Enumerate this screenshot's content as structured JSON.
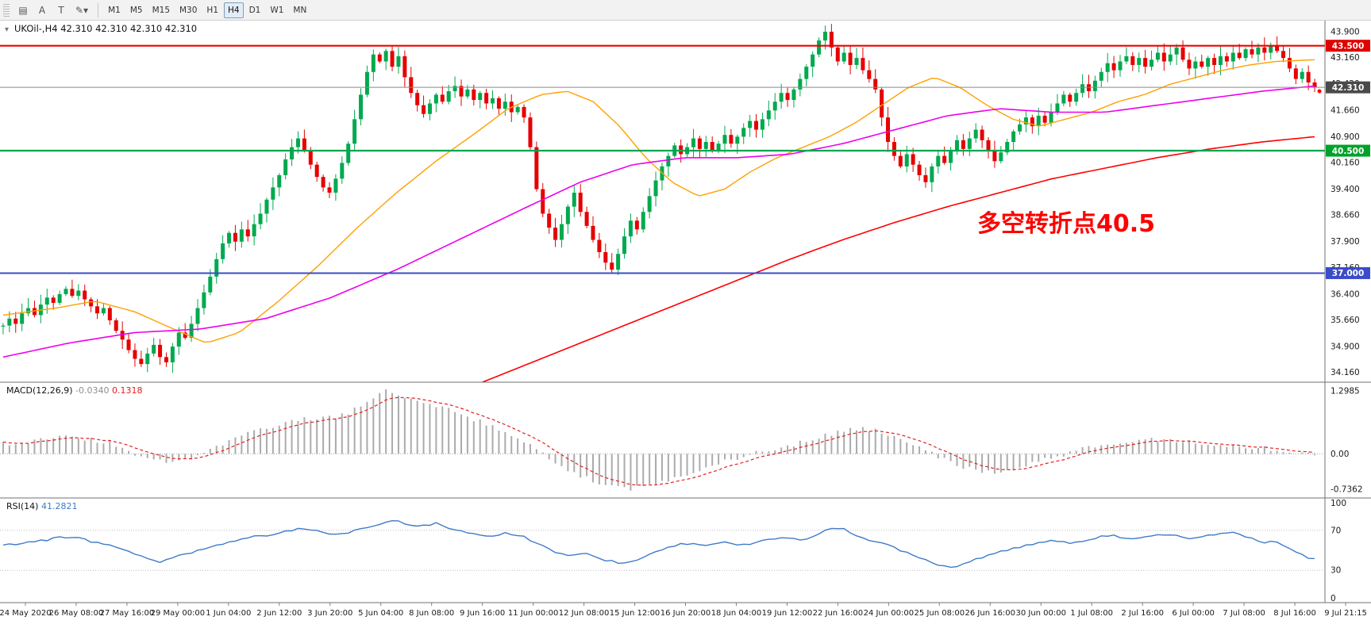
{
  "toolbar": {
    "icons": [
      {
        "name": "chart-list-icon",
        "glyph": "▤"
      },
      {
        "name": "label-a-button",
        "glyph": "A"
      },
      {
        "name": "text-tool-button",
        "glyph": "T"
      },
      {
        "name": "drawing-tools-dropdown",
        "glyph": "✎▾"
      }
    ],
    "timeframes": [
      "M1",
      "M5",
      "M15",
      "M30",
      "H1",
      "H4",
      "D1",
      "W1",
      "MN"
    ],
    "active_timeframe": "H4"
  },
  "header": {
    "symbol_title": "UKOil-,H4",
    "ohlc_text": "42.310 42.310 42.310 42.310"
  },
  "chart_data": {
    "type": "candlestick",
    "symbol": "UKOil-",
    "timeframe": "H4",
    "current_price": 42.31,
    "y_range": [
      33.95,
      44.15
    ],
    "price_axis_labels": [
      "43.900",
      "43.160",
      "42.420",
      "41.660",
      "40.900",
      "40.160",
      "39.400",
      "38.660",
      "37.900",
      "37.160",
      "36.400",
      "35.660",
      "34.900",
      "34.160"
    ],
    "horizontal_lines": [
      {
        "price": 43.5,
        "color": "#f00000",
        "width": 2.2,
        "label": "43.500",
        "badge_color": "#e00000"
      },
      {
        "price": 42.31,
        "color": "#8a8a8a",
        "width": 1,
        "label": "42.310",
        "badge_color": "#4a4a4a"
      },
      {
        "price": 40.5,
        "color": "#00a651",
        "width": 2.2,
        "label": "40.500",
        "badge_color": "#00a22a"
      },
      {
        "price": 37.0,
        "color": "#3b4cca",
        "width": 2,
        "label": "37.000",
        "badge_color": "#3b4cca"
      }
    ],
    "annotation": {
      "text": "多空转折点40.5",
      "color": "#ff0000"
    },
    "closes": [
      35.5,
      35.7,
      35.55,
      35.85,
      36.0,
      35.8,
      36.1,
      36.3,
      36.15,
      36.4,
      36.55,
      36.35,
      36.5,
      36.25,
      36.05,
      35.85,
      36.0,
      35.65,
      35.35,
      35.1,
      34.8,
      34.55,
      34.4,
      34.7,
      34.95,
      34.6,
      34.45,
      34.9,
      35.3,
      35.15,
      35.55,
      36.0,
      36.45,
      36.9,
      37.4,
      37.85,
      38.15,
      37.9,
      38.25,
      38.05,
      38.4,
      38.7,
      39.1,
      39.45,
      39.8,
      40.25,
      40.6,
      40.85,
      40.5,
      40.1,
      39.75,
      39.45,
      39.3,
      39.7,
      40.15,
      40.7,
      41.4,
      42.1,
      42.75,
      43.25,
      43.05,
      43.35,
      42.9,
      43.2,
      42.6,
      42.15,
      41.8,
      41.55,
      41.85,
      42.1,
      41.9,
      42.2,
      42.35,
      42.05,
      42.25,
      41.95,
      42.15,
      41.85,
      42.0,
      41.7,
      41.9,
      41.6,
      41.75,
      41.45,
      40.6,
      39.4,
      38.7,
      38.3,
      37.95,
      38.4,
      38.9,
      39.3,
      38.75,
      38.35,
      37.95,
      37.6,
      37.3,
      37.1,
      37.55,
      38.05,
      38.5,
      38.25,
      38.75,
      39.2,
      39.65,
      40.05,
      40.35,
      40.65,
      40.4,
      40.6,
      40.85,
      40.55,
      40.75,
      40.5,
      40.7,
      40.95,
      40.7,
      40.9,
      41.15,
      41.35,
      41.1,
      41.4,
      41.65,
      41.9,
      42.15,
      41.95,
      42.25,
      42.55,
      42.9,
      43.25,
      43.65,
      43.9,
      43.45,
      43.05,
      43.3,
      42.95,
      43.15,
      42.8,
      42.55,
      42.25,
      41.45,
      40.75,
      40.35,
      40.05,
      40.4,
      40.1,
      39.8,
      39.6,
      40.05,
      40.35,
      40.15,
      40.5,
      40.8,
      40.55,
      40.85,
      41.1,
      40.8,
      40.5,
      40.2,
      40.45,
      40.75,
      41.05,
      41.25,
      41.45,
      41.2,
      41.5,
      41.3,
      41.6,
      41.85,
      42.1,
      41.9,
      42.15,
      42.4,
      42.2,
      42.5,
      42.75,
      43.0,
      42.8,
      43.05,
      43.2,
      42.95,
      43.15,
      42.9,
      43.1,
      43.3,
      43.05,
      43.25,
      43.45,
      43.1,
      42.85,
      43.05,
      42.9,
      43.15,
      42.95,
      43.2,
      43.05,
      43.3,
      43.15,
      43.4,
      43.25,
      43.45,
      43.3,
      43.5,
      43.35,
      43.15,
      42.85,
      42.55,
      42.75,
      42.45,
      42.31
    ],
    "candle_up_color": "#00a94f",
    "candle_down_color": "#e60000",
    "moving_averages": [
      {
        "name": "ma-fast-orange",
        "color": "#ffa000",
        "width": 1.4,
        "points": [
          [
            0,
            35.8
          ],
          [
            0.04,
            36.0
          ],
          [
            0.07,
            36.2
          ],
          [
            0.1,
            35.9
          ],
          [
            0.13,
            35.4
          ],
          [
            0.155,
            35.0
          ],
          [
            0.18,
            35.3
          ],
          [
            0.21,
            36.2
          ],
          [
            0.24,
            37.2
          ],
          [
            0.27,
            38.3
          ],
          [
            0.3,
            39.3
          ],
          [
            0.33,
            40.2
          ],
          [
            0.36,
            41.0
          ],
          [
            0.385,
            41.7
          ],
          [
            0.41,
            42.1
          ],
          [
            0.43,
            42.2
          ],
          [
            0.45,
            41.9
          ],
          [
            0.47,
            41.2
          ],
          [
            0.49,
            40.3
          ],
          [
            0.51,
            39.6
          ],
          [
            0.53,
            39.2
          ],
          [
            0.55,
            39.4
          ],
          [
            0.57,
            39.9
          ],
          [
            0.59,
            40.3
          ],
          [
            0.61,
            40.6
          ],
          [
            0.63,
            40.9
          ],
          [
            0.65,
            41.3
          ],
          [
            0.67,
            41.8
          ],
          [
            0.69,
            42.3
          ],
          [
            0.71,
            42.6
          ],
          [
            0.73,
            42.3
          ],
          [
            0.75,
            41.8
          ],
          [
            0.77,
            41.4
          ],
          [
            0.79,
            41.2
          ],
          [
            0.81,
            41.4
          ],
          [
            0.83,
            41.6
          ],
          [
            0.85,
            41.9
          ],
          [
            0.87,
            42.1
          ],
          [
            0.89,
            42.4
          ],
          [
            0.91,
            42.6
          ],
          [
            0.93,
            42.8
          ],
          [
            0.95,
            42.95
          ],
          [
            0.97,
            43.05
          ],
          [
            1.0,
            43.1
          ]
        ]
      },
      {
        "name": "ma-medium-magenta",
        "color": "#ee00ee",
        "width": 1.6,
        "points": [
          [
            0,
            34.6
          ],
          [
            0.05,
            35.0
          ],
          [
            0.1,
            35.3
          ],
          [
            0.15,
            35.4
          ],
          [
            0.2,
            35.7
          ],
          [
            0.25,
            36.3
          ],
          [
            0.3,
            37.1
          ],
          [
            0.35,
            38.0
          ],
          [
            0.4,
            38.9
          ],
          [
            0.44,
            39.6
          ],
          [
            0.48,
            40.1
          ],
          [
            0.52,
            40.3
          ],
          [
            0.56,
            40.3
          ],
          [
            0.6,
            40.4
          ],
          [
            0.64,
            40.7
          ],
          [
            0.68,
            41.1
          ],
          [
            0.72,
            41.5
          ],
          [
            0.76,
            41.7
          ],
          [
            0.8,
            41.6
          ],
          [
            0.84,
            41.6
          ],
          [
            0.88,
            41.8
          ],
          [
            0.92,
            42.0
          ],
          [
            0.96,
            42.2
          ],
          [
            1.0,
            42.35
          ]
        ]
      },
      {
        "name": "ma-slow-red",
        "color": "#ff0000",
        "width": 1.6,
        "points": [
          [
            0.36,
            33.8
          ],
          [
            0.4,
            34.4
          ],
          [
            0.44,
            35.0
          ],
          [
            0.48,
            35.6
          ],
          [
            0.52,
            36.2
          ],
          [
            0.56,
            36.8
          ],
          [
            0.6,
            37.4
          ],
          [
            0.64,
            37.95
          ],
          [
            0.68,
            38.45
          ],
          [
            0.72,
            38.9
          ],
          [
            0.76,
            39.3
          ],
          [
            0.8,
            39.7
          ],
          [
            0.84,
            40.0
          ],
          [
            0.88,
            40.3
          ],
          [
            0.92,
            40.55
          ],
          [
            0.96,
            40.75
          ],
          [
            1.0,
            40.9
          ]
        ]
      }
    ],
    "macd": {
      "label": "MACD(12,26,9)",
      "main_value": "-0.0340",
      "signal_value": "0.1318",
      "axis_labels": [
        "1.2985",
        "0.00",
        "-0.7362"
      ],
      "range": [
        -0.88,
        1.45
      ],
      "histogram_color": "#ababab",
      "signal_color": "#e02020",
      "points": [
        [
          0,
          0.2
        ],
        [
          0.05,
          0.35
        ],
        [
          0.08,
          0.25
        ],
        [
          0.1,
          0.0
        ],
        [
          0.12,
          -0.15
        ],
        [
          0.14,
          -0.1
        ],
        [
          0.16,
          0.1
        ],
        [
          0.19,
          0.45
        ],
        [
          0.22,
          0.7
        ],
        [
          0.26,
          0.8
        ],
        [
          0.29,
          1.3
        ],
        [
          0.32,
          1.1
        ],
        [
          0.35,
          0.8
        ],
        [
          0.38,
          0.5
        ],
        [
          0.4,
          0.25
        ],
        [
          0.42,
          -0.2
        ],
        [
          0.44,
          -0.45
        ],
        [
          0.46,
          -0.65
        ],
        [
          0.48,
          -0.73
        ],
        [
          0.5,
          -0.6
        ],
        [
          0.52,
          -0.42
        ],
        [
          0.54,
          -0.25
        ],
        [
          0.56,
          -0.08
        ],
        [
          0.58,
          0.08
        ],
        [
          0.6,
          0.18
        ],
        [
          0.62,
          0.3
        ],
        [
          0.64,
          0.5
        ],
        [
          0.66,
          0.52
        ],
        [
          0.68,
          0.38
        ],
        [
          0.7,
          0.1
        ],
        [
          0.72,
          -0.15
        ],
        [
          0.74,
          -0.35
        ],
        [
          0.76,
          -0.38
        ],
        [
          0.78,
          -0.25
        ],
        [
          0.8,
          -0.08
        ],
        [
          0.82,
          0.08
        ],
        [
          0.84,
          0.18
        ],
        [
          0.86,
          0.26
        ],
        [
          0.88,
          0.3
        ],
        [
          0.9,
          0.27
        ],
        [
          0.92,
          0.22
        ],
        [
          0.94,
          0.17
        ],
        [
          0.96,
          0.12
        ],
        [
          0.98,
          0.04
        ],
        [
          1.0,
          -0.034
        ]
      ]
    },
    "rsi": {
      "label": "RSI(14)",
      "value": "41.2821",
      "axis_labels": [
        "100",
        "70",
        "30",
        "0"
      ],
      "levels": [
        70,
        30
      ],
      "range": [
        0,
        100
      ],
      "color": "#3e7bc8",
      "points": [
        [
          0,
          55
        ],
        [
          0.03,
          60
        ],
        [
          0.05,
          64
        ],
        [
          0.07,
          58
        ],
        [
          0.09,
          52
        ],
        [
          0.105,
          44
        ],
        [
          0.12,
          38
        ],
        [
          0.135,
          45
        ],
        [
          0.15,
          50
        ],
        [
          0.17,
          58
        ],
        [
          0.19,
          63
        ],
        [
          0.21,
          67
        ],
        [
          0.23,
          72
        ],
        [
          0.25,
          65
        ],
        [
          0.27,
          70
        ],
        [
          0.29,
          78
        ],
        [
          0.3,
          80
        ],
        [
          0.315,
          74
        ],
        [
          0.33,
          77
        ],
        [
          0.35,
          68
        ],
        [
          0.37,
          64
        ],
        [
          0.385,
          67
        ],
        [
          0.4,
          62
        ],
        [
          0.415,
          52
        ],
        [
          0.43,
          44
        ],
        [
          0.445,
          47
        ],
        [
          0.46,
          40
        ],
        [
          0.475,
          36
        ],
        [
          0.49,
          45
        ],
        [
          0.505,
          52
        ],
        [
          0.52,
          57
        ],
        [
          0.535,
          54
        ],
        [
          0.55,
          58
        ],
        [
          0.565,
          55
        ],
        [
          0.58,
          60
        ],
        [
          0.6,
          63
        ],
        [
          0.61,
          60
        ],
        [
          0.627,
          70
        ],
        [
          0.64,
          72
        ],
        [
          0.655,
          62
        ],
        [
          0.67,
          58
        ],
        [
          0.685,
          50
        ],
        [
          0.7,
          42
        ],
        [
          0.715,
          35
        ],
        [
          0.725,
          32
        ],
        [
          0.74,
          40
        ],
        [
          0.755,
          46
        ],
        [
          0.77,
          52
        ],
        [
          0.785,
          56
        ],
        [
          0.8,
          60
        ],
        [
          0.815,
          57
        ],
        [
          0.83,
          62
        ],
        [
          0.845,
          65
        ],
        [
          0.86,
          61
        ],
        [
          0.875,
          64
        ],
        [
          0.89,
          66
        ],
        [
          0.905,
          62
        ],
        [
          0.92,
          65
        ],
        [
          0.935,
          68
        ],
        [
          0.95,
          62
        ],
        [
          0.96,
          58
        ],
        [
          0.97,
          60
        ],
        [
          0.98,
          52
        ],
        [
          0.99,
          45
        ],
        [
          1.0,
          41.28
        ]
      ]
    },
    "time_labels": [
      "24 May 2020",
      "26 May 08:00",
      "27 May 16:00",
      "29 May 00:00",
      "1 Jun 04:00",
      "2 Jun 12:00",
      "3 Jun 20:00",
      "5 Jun 04:00",
      "8 Jun 08:00",
      "9 Jun 16:00",
      "11 Jun 00:00",
      "12 Jun 08:00",
      "15 Jun 12:00",
      "16 Jun 20:00",
      "18 Jun 04:00",
      "19 Jun 12:00",
      "22 Jun 16:00",
      "24 Jun 00:00",
      "25 Jun 08:00",
      "26 Jun 16:00",
      "30 Jun 00:00",
      "1 Jul 08:00",
      "2 Jul 16:00",
      "6 Jul 00:00",
      "7 Jul 08:00",
      "8 Jul 16:00",
      "9 Jul 21:15"
    ]
  }
}
